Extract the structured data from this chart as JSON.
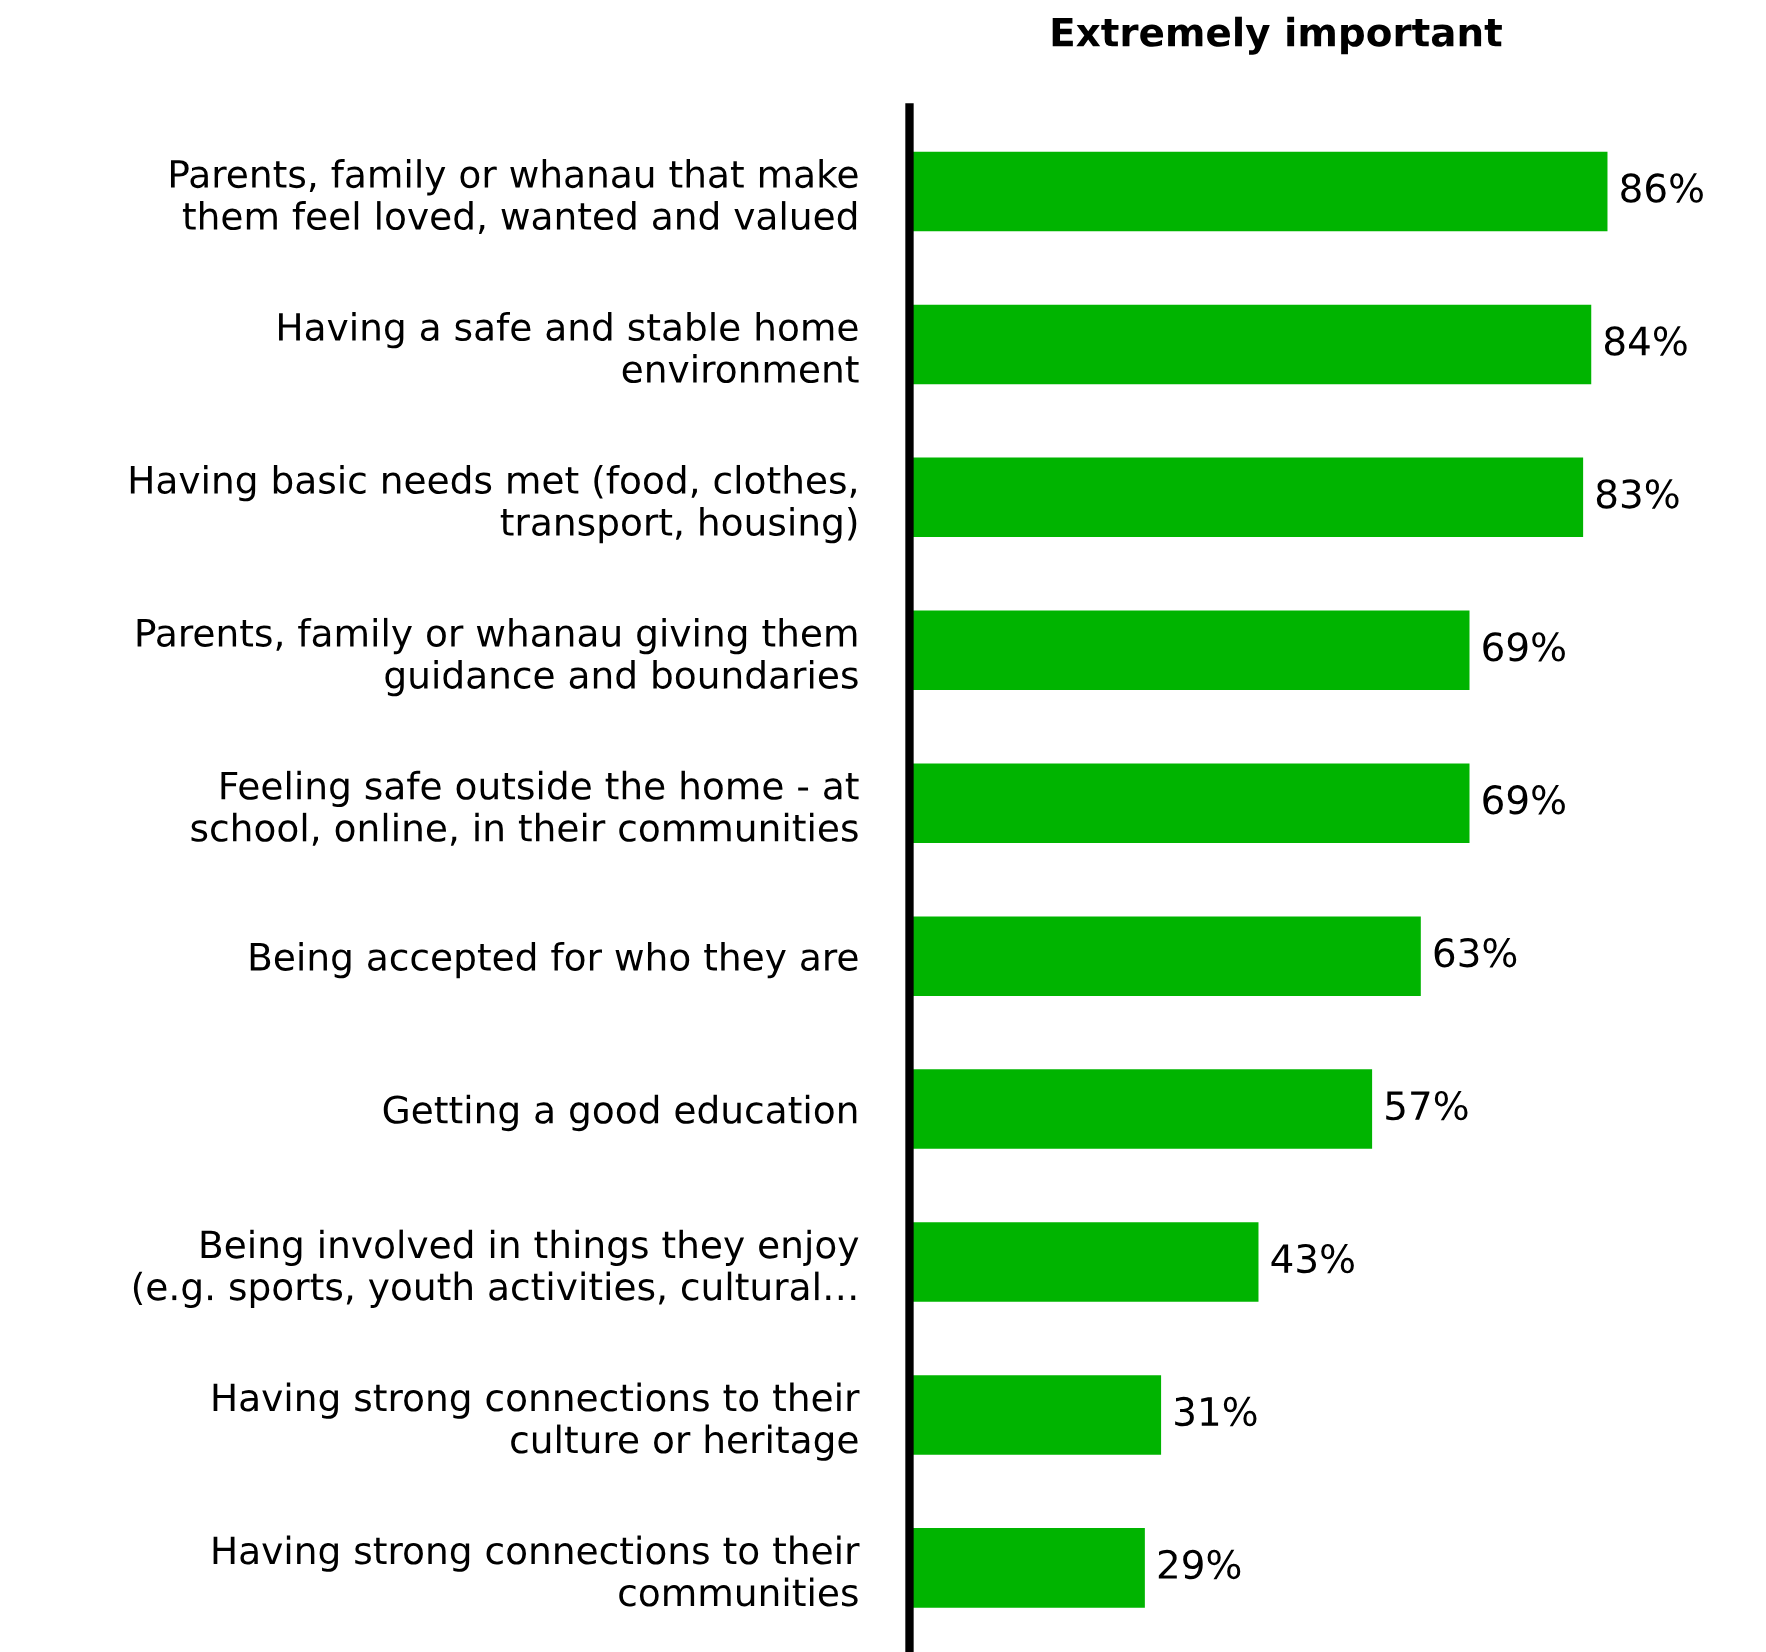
{
  "chart_data": {
    "type": "bar",
    "orientation": "horizontal",
    "title": "Extremely important",
    "categories": [
      "Parents, family or whanau that make\nthem feel loved, wanted and valued",
      "Having a safe and stable home\nenvironment",
      "Having basic needs met (food, clothes,\ntransport, housing)",
      "Parents, family or whanau giving them\nguidance and boundaries",
      "Feeling safe outside the home - at\nschool, online, in their communities",
      "Being accepted for who they are",
      "Getting a good education",
      "Being involved in things they enjoy\n(e.g. sports, youth activities, cultural…",
      "Having strong connections to their\nculture or heritage",
      "Having strong connections to their\ncommunities"
    ],
    "values": [
      86,
      84,
      83,
      69,
      69,
      63,
      57,
      43,
      31,
      29
    ],
    "value_labels": [
      "86%",
      "84%",
      "83%",
      "69%",
      "69%",
      "63%",
      "57%",
      "43%",
      "31%",
      "29%"
    ],
    "color": "#00b400",
    "tick_labels": "y",
    "grid": false,
    "legend": false
  }
}
